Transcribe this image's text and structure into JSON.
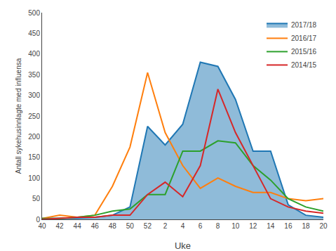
{
  "chart_data": {
    "type": "line",
    "xlabel": "Uke",
    "ylabel": "Antall sykehusinnlagte med influensa",
    "categories": [
      "40",
      "42",
      "44",
      "46",
      "48",
      "50",
      "52",
      "2",
      "4",
      "6",
      "8",
      "10",
      "12",
      "14",
      "16",
      "18",
      "20"
    ],
    "series": [
      {
        "name": "2017/18",
        "type": "area",
        "values": [
          2,
          2,
          3,
          5,
          10,
          30,
          225,
          180,
          230,
          380,
          370,
          290,
          165,
          165,
          35,
          10,
          5
        ]
      },
      {
        "name": "2016/17",
        "type": "line",
        "values": [
          2,
          10,
          5,
          10,
          80,
          175,
          355,
          210,
          130,
          75,
          100,
          80,
          65,
          65,
          50,
          45,
          50
        ]
      },
      {
        "name": "2015/16",
        "type": "line",
        "values": [
          2,
          2,
          5,
          10,
          20,
          25,
          60,
          60,
          165,
          165,
          190,
          185,
          130,
          95,
          50,
          30,
          20
        ]
      },
      {
        "name": "2014/15",
        "type": "line",
        "values": [
          0,
          2,
          5,
          5,
          10,
          10,
          60,
          90,
          55,
          130,
          315,
          210,
          130,
          50,
          30,
          20,
          15
        ]
      }
    ],
    "ylim": [
      0,
      500
    ],
    "yticks": [
      0,
      50,
      100,
      150,
      200,
      250,
      300,
      350,
      400,
      450,
      500
    ],
    "grid": false,
    "legend": "upper right"
  }
}
